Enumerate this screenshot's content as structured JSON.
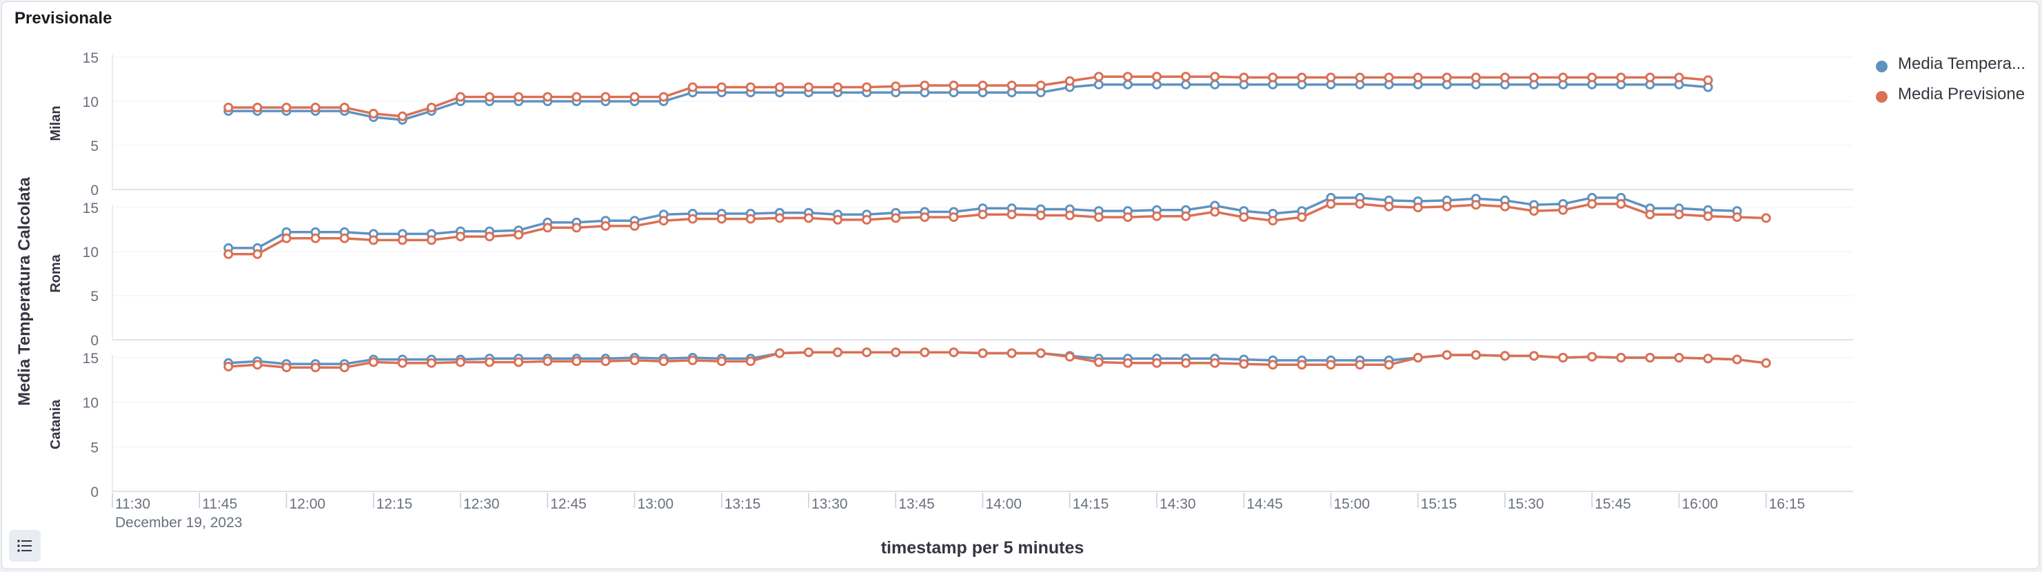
{
  "panel": {
    "title": "Previsionale"
  },
  "colors": {
    "temperature": "#6092c0",
    "forecast": "#da7055",
    "axis_text": "#69707d",
    "grid": "#eef0f3",
    "axis_title": "#343741"
  },
  "icons": {
    "legend_toggle": "list-icon"
  },
  "chart_data": {
    "type": "line",
    "xlabel": "timestamp per 5 minutes",
    "ylabel": "Media Temperatura Calcolata",
    "x_ticks": [
      "11:30",
      "11:45",
      "12:00",
      "12:15",
      "12:30",
      "12:45",
      "13:00",
      "13:15",
      "13:30",
      "13:45",
      "14:00",
      "14:15",
      "14:30",
      "14:45",
      "15:00",
      "15:15",
      "15:30",
      "15:45",
      "16:00",
      "16:15"
    ],
    "x_date_label": "December 19, 2023",
    "x_start_time": "11:50",
    "x_interval_minutes": 5,
    "xlim": [
      "11:30",
      "16:30"
    ],
    "ylim": [
      0,
      15
    ],
    "y_ticks": [
      0,
      5,
      10,
      15
    ],
    "legend_position": "top-right",
    "series_names": [
      "Media Tempera...",
      "Media Previsione"
    ],
    "panels": [
      {
        "name": "Milan",
        "series": [
          {
            "name": "Media Tempera...",
            "values": [
              8.9,
              8.9,
              8.9,
              8.9,
              8.9,
              8.2,
              7.9,
              8.9,
              10,
              10,
              10,
              10,
              10,
              10,
              10,
              10,
              11,
              11,
              11,
              11,
              11,
              11,
              11,
              11,
              11,
              11,
              11,
              11,
              11,
              11.6,
              11.9,
              11.9,
              11.9,
              11.9,
              11.9,
              11.9,
              11.9,
              11.9,
              11.9,
              11.9,
              11.9,
              11.9,
              11.9,
              11.9,
              11.9,
              11.9,
              11.9,
              11.9,
              11.9,
              11.9,
              11.9,
              11.6
            ]
          },
          {
            "name": "Media Previsione",
            "values": [
              9.3,
              9.3,
              9.3,
              9.3,
              9.3,
              8.6,
              8.3,
              9.3,
              10.5,
              10.5,
              10.5,
              10.5,
              10.5,
              10.5,
              10.5,
              10.5,
              11.6,
              11.6,
              11.6,
              11.6,
              11.6,
              11.6,
              11.6,
              11.7,
              11.8,
              11.8,
              11.8,
              11.8,
              11.8,
              12.3,
              12.8,
              12.8,
              12.8,
              12.8,
              12.8,
              12.7,
              12.7,
              12.7,
              12.7,
              12.7,
              12.7,
              12.7,
              12.7,
              12.7,
              12.7,
              12.7,
              12.7,
              12.7,
              12.7,
              12.7,
              12.7,
              12.4
            ]
          }
        ]
      },
      {
        "name": "Roma",
        "series": [
          {
            "name": "Media Tempera...",
            "values": [
              10.4,
              10.4,
              12.2,
              12.2,
              12.2,
              12.0,
              12.0,
              12.0,
              12.3,
              12.3,
              12.4,
              13.3,
              13.3,
              13.5,
              13.5,
              14.2,
              14.3,
              14.3,
              14.3,
              14.4,
              14.4,
              14.2,
              14.2,
              14.4,
              14.5,
              14.5,
              14.9,
              14.9,
              14.8,
              14.8,
              14.6,
              14.6,
              14.7,
              14.7,
              15.2,
              14.6,
              14.3,
              14.6,
              16.1,
              16.1,
              15.8,
              15.7,
              15.8,
              16.0,
              15.8,
              15.3,
              15.4,
              16.1,
              16.1,
              14.9,
              14.9,
              14.7,
              14.6
            ]
          },
          {
            "name": "Media Previsione",
            "values": [
              9.7,
              9.7,
              11.5,
              11.5,
              11.5,
              11.3,
              11.3,
              11.3,
              11.7,
              11.7,
              11.9,
              12.7,
              12.7,
              12.9,
              12.9,
              13.5,
              13.7,
              13.7,
              13.7,
              13.8,
              13.8,
              13.6,
              13.6,
              13.8,
              13.9,
              13.9,
              14.2,
              14.2,
              14.1,
              14.1,
              13.9,
              13.9,
              14.0,
              14.0,
              14.5,
              13.9,
              13.5,
              13.9,
              15.4,
              15.4,
              15.1,
              15.0,
              15.1,
              15.3,
              15.1,
              14.6,
              14.7,
              15.4,
              15.4,
              14.2,
              14.2,
              14.0,
              13.9,
              13.8
            ]
          }
        ]
      },
      {
        "name": "Catania",
        "series": [
          {
            "name": "Media Tempera...",
            "values": [
              14.4,
              14.6,
              14.3,
              14.3,
              14.3,
              14.8,
              14.8,
              14.8,
              14.8,
              14.9,
              14.9,
              14.9,
              14.9,
              14.9,
              15.0,
              14.9,
              15.0,
              14.9,
              14.9,
              15.5,
              15.6,
              15.6,
              15.6,
              15.6,
              15.6,
              15.6,
              15.5,
              15.5,
              15.5,
              15.2,
              14.9,
              14.9,
              14.9,
              14.9,
              14.9,
              14.8,
              14.7,
              14.7,
              14.7,
              14.7,
              14.7,
              15.0,
              15.3,
              15.3,
              15.2,
              15.2,
              15.0,
              15.1,
              15.0,
              15.0,
              15.0,
              14.9,
              14.8
            ]
          },
          {
            "name": "Media Previsione",
            "values": [
              14.0,
              14.2,
              13.9,
              13.9,
              13.9,
              14.5,
              14.4,
              14.4,
              14.5,
              14.5,
              14.5,
              14.6,
              14.6,
              14.6,
              14.7,
              14.6,
              14.7,
              14.6,
              14.6,
              15.5,
              15.6,
              15.6,
              15.6,
              15.6,
              15.6,
              15.6,
              15.5,
              15.5,
              15.5,
              15.1,
              14.5,
              14.4,
              14.4,
              14.4,
              14.4,
              14.3,
              14.2,
              14.2,
              14.2,
              14.2,
              14.2,
              15.0,
              15.3,
              15.3,
              15.2,
              15.2,
              15.0,
              15.1,
              15.0,
              15.0,
              15.0,
              14.9,
              14.8,
              14.4
            ]
          }
        ]
      }
    ]
  }
}
